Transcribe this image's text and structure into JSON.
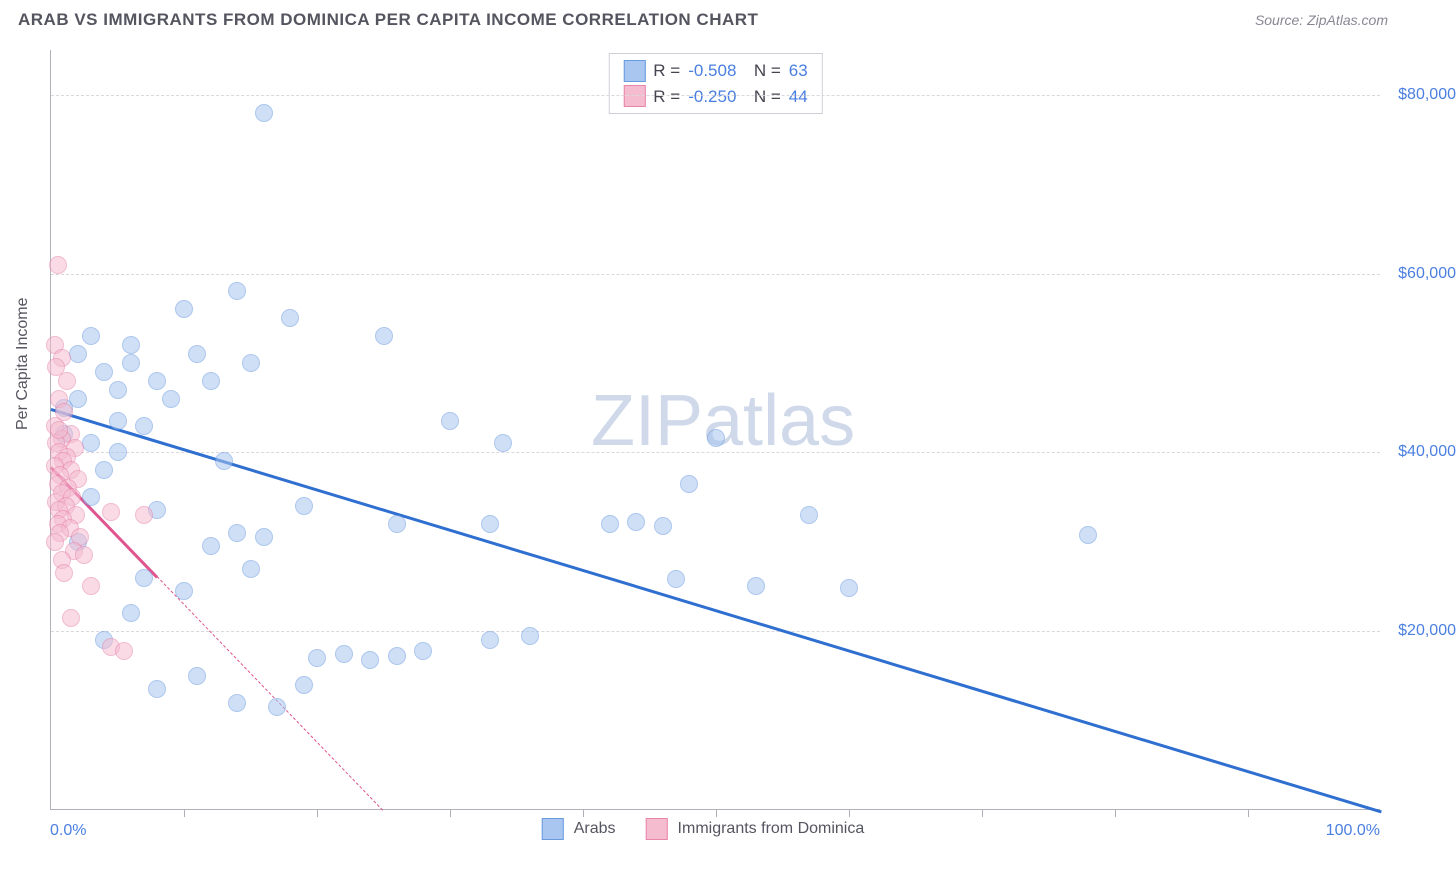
{
  "header": {
    "title": "ARAB VS IMMIGRANTS FROM DOMINICA PER CAPITA INCOME CORRELATION CHART",
    "source": "Source: ZipAtlas.com"
  },
  "watermark": {
    "text_bold": "ZIP",
    "text_light": "atlas"
  },
  "chart": {
    "type": "scatter",
    "xlim": [
      0,
      100
    ],
    "ylim": [
      0,
      85000
    ],
    "xlabel_min": "0.0%",
    "xlabel_max": "100.0%",
    "yaxis_title": "Per Capita Income",
    "ylabels": [
      {
        "v": 20000,
        "label": "$20,000"
      },
      {
        "v": 40000,
        "label": "$40,000"
      },
      {
        "v": 60000,
        "label": "$60,000"
      },
      {
        "v": 80000,
        "label": "$80,000"
      }
    ],
    "xticks": [
      10,
      20,
      30,
      40,
      50,
      60,
      70,
      80,
      90
    ],
    "grid_color": "#d8d8dd",
    "background_color": "#ffffff",
    "marker_radius": 9,
    "marker_opacity": 0.55,
    "series": [
      {
        "name": "Arabs",
        "color_fill": "#a8c6f0",
        "color_stroke": "#6a9be0",
        "line_color": "#2f6fd0",
        "R": "-0.508",
        "N": "63",
        "reg_start": {
          "x": 0,
          "y": 45000
        },
        "reg_end": {
          "x": 100,
          "y": 0
        },
        "reg_solid_until_x": 100,
        "points": [
          {
            "x": 16,
            "y": 78000
          },
          {
            "x": 14,
            "y": 58000
          },
          {
            "x": 10,
            "y": 56000
          },
          {
            "x": 18,
            "y": 55000
          },
          {
            "x": 25,
            "y": 53000
          },
          {
            "x": 3,
            "y": 53000
          },
          {
            "x": 6,
            "y": 52000
          },
          {
            "x": 2,
            "y": 51000
          },
          {
            "x": 11,
            "y": 51000
          },
          {
            "x": 6,
            "y": 50000
          },
          {
            "x": 15,
            "y": 50000
          },
          {
            "x": 4,
            "y": 49000
          },
          {
            "x": 8,
            "y": 48000
          },
          {
            "x": 12,
            "y": 48000
          },
          {
            "x": 5,
            "y": 47000
          },
          {
            "x": 2,
            "y": 46000
          },
          {
            "x": 9,
            "y": 46000
          },
          {
            "x": 1,
            "y": 45000
          },
          {
            "x": 7,
            "y": 43000
          },
          {
            "x": 30,
            "y": 43500
          },
          {
            "x": 34,
            "y": 41000
          },
          {
            "x": 50,
            "y": 41600
          },
          {
            "x": 5,
            "y": 40000
          },
          {
            "x": 13,
            "y": 39000
          },
          {
            "x": 4,
            "y": 38000
          },
          {
            "x": 48,
            "y": 36500
          },
          {
            "x": 3,
            "y": 35000
          },
          {
            "x": 19,
            "y": 34000
          },
          {
            "x": 8,
            "y": 33500
          },
          {
            "x": 26,
            "y": 32000
          },
          {
            "x": 33,
            "y": 32000
          },
          {
            "x": 42,
            "y": 32000
          },
          {
            "x": 44,
            "y": 32200
          },
          {
            "x": 57,
            "y": 33000
          },
          {
            "x": 78,
            "y": 30800
          },
          {
            "x": 14,
            "y": 31000
          },
          {
            "x": 12,
            "y": 29500
          },
          {
            "x": 47,
            "y": 25800
          },
          {
            "x": 53,
            "y": 25000
          },
          {
            "x": 60,
            "y": 24800
          },
          {
            "x": 15,
            "y": 27000
          },
          {
            "x": 10,
            "y": 24500
          },
          {
            "x": 6,
            "y": 22000
          },
          {
            "x": 36,
            "y": 19500
          },
          {
            "x": 33,
            "y": 19000
          },
          {
            "x": 28,
            "y": 17800
          },
          {
            "x": 22,
            "y": 17500
          },
          {
            "x": 20,
            "y": 17000
          },
          {
            "x": 24,
            "y": 16800
          },
          {
            "x": 26,
            "y": 17200
          },
          {
            "x": 11,
            "y": 15000
          },
          {
            "x": 8,
            "y": 13500
          },
          {
            "x": 14,
            "y": 12000
          },
          {
            "x": 17,
            "y": 11500
          },
          {
            "x": 19,
            "y": 14000
          },
          {
            "x": 4,
            "y": 19000
          },
          {
            "x": 7,
            "y": 26000
          },
          {
            "x": 2,
            "y": 30000
          },
          {
            "x": 1,
            "y": 42000
          },
          {
            "x": 3,
            "y": 41000
          },
          {
            "x": 46,
            "y": 31800
          },
          {
            "x": 16,
            "y": 30500
          },
          {
            "x": 5,
            "y": 43500
          }
        ]
      },
      {
        "name": "Immigrants from Dominica",
        "color_fill": "#f5bcd0",
        "color_stroke": "#e785aa",
        "line_color": "#e05590",
        "R": "-0.250",
        "N": "44",
        "reg_start": {
          "x": 0,
          "y": 38500
        },
        "reg_end": {
          "x": 25,
          "y": 0
        },
        "reg_solid_until_x": 8,
        "points": [
          {
            "x": 0.5,
            "y": 61000
          },
          {
            "x": 0.3,
            "y": 52000
          },
          {
            "x": 0.8,
            "y": 50500
          },
          {
            "x": 0.4,
            "y": 49500
          },
          {
            "x": 1.2,
            "y": 48000
          },
          {
            "x": 0.6,
            "y": 46000
          },
          {
            "x": 1.0,
            "y": 44500
          },
          {
            "x": 0.3,
            "y": 43000
          },
          {
            "x": 1.5,
            "y": 42000
          },
          {
            "x": 0.8,
            "y": 41500
          },
          {
            "x": 0.4,
            "y": 41000
          },
          {
            "x": 1.8,
            "y": 40500
          },
          {
            "x": 0.6,
            "y": 40000
          },
          {
            "x": 1.2,
            "y": 39500
          },
          {
            "x": 0.9,
            "y": 39000
          },
          {
            "x": 0.3,
            "y": 38500
          },
          {
            "x": 1.5,
            "y": 38000
          },
          {
            "x": 0.7,
            "y": 37500
          },
          {
            "x": 2.0,
            "y": 37000
          },
          {
            "x": 0.5,
            "y": 36500
          },
          {
            "x": 1.3,
            "y": 36000
          },
          {
            "x": 0.8,
            "y": 35500
          },
          {
            "x": 1.6,
            "y": 35000
          },
          {
            "x": 0.4,
            "y": 34500
          },
          {
            "x": 1.1,
            "y": 34000
          },
          {
            "x": 0.6,
            "y": 33500
          },
          {
            "x": 1.9,
            "y": 33000
          },
          {
            "x": 0.9,
            "y": 32500
          },
          {
            "x": 4.5,
            "y": 33300
          },
          {
            "x": 7,
            "y": 33000
          },
          {
            "x": 0.5,
            "y": 32000
          },
          {
            "x": 1.4,
            "y": 31500
          },
          {
            "x": 0.7,
            "y": 31000
          },
          {
            "x": 2.2,
            "y": 30500
          },
          {
            "x": 0.3,
            "y": 30000
          },
          {
            "x": 1.7,
            "y": 29000
          },
          {
            "x": 0.8,
            "y": 28000
          },
          {
            "x": 2.5,
            "y": 28500
          },
          {
            "x": 1.0,
            "y": 26500
          },
          {
            "x": 3,
            "y": 25000
          },
          {
            "x": 1.5,
            "y": 21500
          },
          {
            "x": 4.5,
            "y": 18200
          },
          {
            "x": 5.5,
            "y": 17800
          },
          {
            "x": 0.6,
            "y": 42500
          }
        ]
      }
    ]
  },
  "bottom_legend": {
    "items": [
      {
        "label": "Arabs"
      },
      {
        "label": "Immigrants from Dominica"
      }
    ]
  }
}
